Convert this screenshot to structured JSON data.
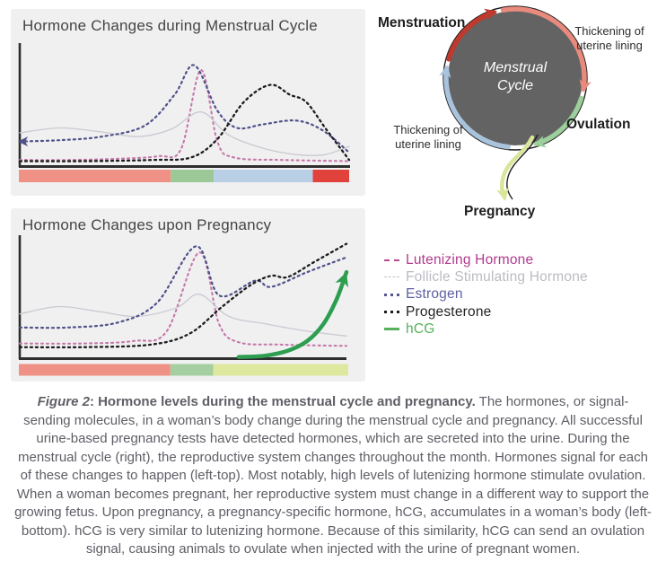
{
  "panels": {
    "menstrual": {
      "title": "Hormone Changes during Menstrual Cycle"
    },
    "pregnancy": {
      "title": "Hormone Changes upon Pregnancy"
    }
  },
  "hormones": {
    "Lutenizing Hormone": {
      "curve_color": "#c678a8",
      "dash": "2,4",
      "width": 2.1
    },
    "Follicle Stimulating Hormone": {
      "curve_color": "#c9c9d1",
      "dash": "",
      "width": 1.3
    },
    "Estrogen": {
      "curve_color": "#4f5189",
      "dash": "2,4",
      "width": 2.2
    },
    "Progesterone": {
      "curve_color": "#1c1c1c",
      "dash": "2,4",
      "width": 2.3
    },
    "hCG": {
      "curve_color": "#2d9e4f",
      "dash": "",
      "width": 4.5
    }
  },
  "chart_data": [
    {
      "id": "menstrual-cycle-chart",
      "type": "line",
      "title": "Hormone Changes during Menstrual Cycle",
      "xlabel": "",
      "ylabel": "",
      "x_range_pct": [
        0,
        100
      ],
      "y_range_relative_level": [
        0,
        100
      ],
      "grid": false,
      "legend_position": "separate-right-column",
      "series": [
        {
          "name": "Lutenizing Hormone",
          "start_arrow": false,
          "end_arrow": false,
          "points": [
            [
              0,
              5
            ],
            [
              15,
              5
            ],
            [
              30,
              6
            ],
            [
              42,
              8
            ],
            [
              49,
              14
            ],
            [
              55,
              78
            ],
            [
              60,
              20
            ],
            [
              65,
              7
            ],
            [
              80,
              5
            ],
            [
              100,
              4
            ]
          ]
        },
        {
          "name": "Follicle Stimulating Hormone",
          "start_arrow": false,
          "end_arrow": false,
          "points": [
            [
              0,
              27
            ],
            [
              12,
              31
            ],
            [
              24,
              28
            ],
            [
              36,
              24
            ],
            [
              46,
              30
            ],
            [
              55,
              44
            ],
            [
              63,
              26
            ],
            [
              72,
              16
            ],
            [
              82,
              10
            ],
            [
              92,
              9
            ],
            [
              100,
              16
            ]
          ]
        },
        {
          "name": "Estrogen",
          "start_arrow": true,
          "end_arrow": false,
          "points": [
            [
              0,
              20
            ],
            [
              12,
              21
            ],
            [
              25,
              24
            ],
            [
              38,
              33
            ],
            [
              47,
              58
            ],
            [
              53,
              82
            ],
            [
              60,
              45
            ],
            [
              66,
              31
            ],
            [
              74,
              34
            ],
            [
              84,
              37
            ],
            [
              92,
              29
            ],
            [
              100,
              11
            ]
          ]
        },
        {
          "name": "Progesterone",
          "start_arrow": false,
          "end_arrow": false,
          "points": [
            [
              0,
              4
            ],
            [
              20,
              4
            ],
            [
              40,
              5
            ],
            [
              52,
              7
            ],
            [
              60,
              22
            ],
            [
              68,
              52
            ],
            [
              76,
              66
            ],
            [
              82,
              58
            ],
            [
              87,
              52
            ],
            [
              93,
              30
            ],
            [
              100,
              5
            ]
          ]
        }
      ],
      "phase_bar": [
        {
          "color": "#ef9285",
          "width_pct": 46
        },
        {
          "color": "#9bc896",
          "width_pct": 13
        },
        {
          "color": "#b9cfe6",
          "width_pct": 30
        },
        {
          "color": "#e1423b",
          "width_pct": 11
        }
      ]
    },
    {
      "id": "pregnancy-chart",
      "type": "line",
      "title": "Hormone Changes upon Pregnancy",
      "xlabel": "",
      "ylabel": "",
      "x_range_pct": [
        0,
        100
      ],
      "y_range_relative_level": [
        0,
        100
      ],
      "grid": false,
      "legend_position": "separate-right-column",
      "series": [
        {
          "name": "Lutenizing Hormone",
          "start_arrow": false,
          "end_arrow": false,
          "points": [
            [
              0,
              12
            ],
            [
              20,
              12
            ],
            [
              35,
              14
            ],
            [
              45,
              22
            ],
            [
              55,
              86
            ],
            [
              61,
              28
            ],
            [
              67,
              13
            ],
            [
              80,
              11
            ],
            [
              100,
              10
            ]
          ]
        },
        {
          "name": "Follicle Stimulating Hormone",
          "start_arrow": false,
          "end_arrow": false,
          "points": [
            [
              0,
              36
            ],
            [
              12,
              42
            ],
            [
              24,
              38
            ],
            [
              36,
              34
            ],
            [
              48,
              41
            ],
            [
              55,
              52
            ],
            [
              64,
              34
            ],
            [
              75,
              28
            ],
            [
              88,
              22
            ],
            [
              100,
              18
            ]
          ]
        },
        {
          "name": "Estrogen",
          "start_arrow": false,
          "end_arrow": false,
          "points": [
            [
              0,
              25
            ],
            [
              15,
              25
            ],
            [
              30,
              29
            ],
            [
              42,
              45
            ],
            [
              54,
              91
            ],
            [
              61,
              51
            ],
            [
              72,
              63
            ],
            [
              77,
              58
            ],
            [
              88,
              70
            ],
            [
              100,
              82
            ]
          ]
        },
        {
          "name": "Progesterone",
          "start_arrow": false,
          "end_arrow": false,
          "points": [
            [
              0,
              9
            ],
            [
              20,
              9
            ],
            [
              40,
              11
            ],
            [
              52,
              20
            ],
            [
              62,
              42
            ],
            [
              71,
              60
            ],
            [
              77,
              67
            ],
            [
              82,
              66
            ],
            [
              90,
              78
            ],
            [
              100,
              93
            ]
          ]
        },
        {
          "name": "hCG",
          "start_arrow": false,
          "end_arrow": true,
          "points": [
            [
              67,
              1
            ],
            [
              75,
              2
            ],
            [
              82,
              6
            ],
            [
              88,
              14
            ],
            [
              93,
              28
            ],
            [
              97,
              48
            ],
            [
              100,
              70
            ]
          ]
        }
      ],
      "phase_bar": [
        {
          "color": "#ef9285",
          "width_pct": 46
        },
        {
          "color": "#a5cfa1",
          "width_pct": 13
        },
        {
          "color": "#dfe89f",
          "width_pct": 41
        }
      ]
    }
  ],
  "cycle_diagram": {
    "center_line1": "Menstrual",
    "center_line2": "Cycle",
    "circle_color": "#636363",
    "labels": {
      "menstruation": "Menstruation",
      "thickening_top_right": "Thickening of\nuterine lining",
      "ovulation": "Ovulation",
      "thickening_bottom_left": "Thickening of\nuterine lining",
      "pregnancy": "Pregnancy"
    },
    "arc_colors": {
      "menstruation": "#bf3a2d",
      "thickening_top_right": "#e88a7d",
      "ovulation": "#9ccf9b",
      "thickening_bottom_left": "#a9c3dd",
      "pregnancy_arrow": "#d9e59a"
    }
  },
  "legend": {
    "items": [
      {
        "label": "Lutenizing Hormone",
        "color": "#b23b8f",
        "swatch_color": "#b84a93",
        "swatch": "dashed"
      },
      {
        "label": "Follicle Stimulating Hormone",
        "color": "#bbbbc3",
        "swatch_color": "#c4c4cb",
        "swatch": "thin-dashed"
      },
      {
        "label": "Estrogen",
        "color": "#5e5fa3",
        "swatch_color": "#55568f",
        "swatch": "dotted"
      },
      {
        "label": "Progesterone",
        "color": "#242424",
        "swatch_color": "#1c1c1c",
        "swatch": "dotted"
      },
      {
        "label": "hCG",
        "color": "#56b05c",
        "swatch_color": "#56b05c",
        "swatch": "solid"
      }
    ]
  },
  "caption": {
    "figure_label": "Figure 2",
    "title": ": Hormone levels during the menstrual cycle and pregnancy.",
    "body": " The hormones, or signal-sending molecules, in a woman’s body change during the menstrual cycle and pregnancy. All successful urine-based pregnancy tests have detected hormones, which are secreted into the urine. During the menstrual cycle (right), the reproductive system changes throughout the month. Hormones signal for each of these changes to happen (left-top). Most notably, high levels of lutenizing hormone stimulate ovulation. When a woman becomes pregnant, her reproductive system must change in a different way to support the growing fetus. Upon pregnancy, a pregnancy-specific hormone, hCG, accumulates in a woman’s body (left-bottom). hCG is very similar to lutenizing hormone. Because of this similarity, hCG can send an ovulation signal, causing animals to ovulate when injected with the urine of pregnant women."
  }
}
